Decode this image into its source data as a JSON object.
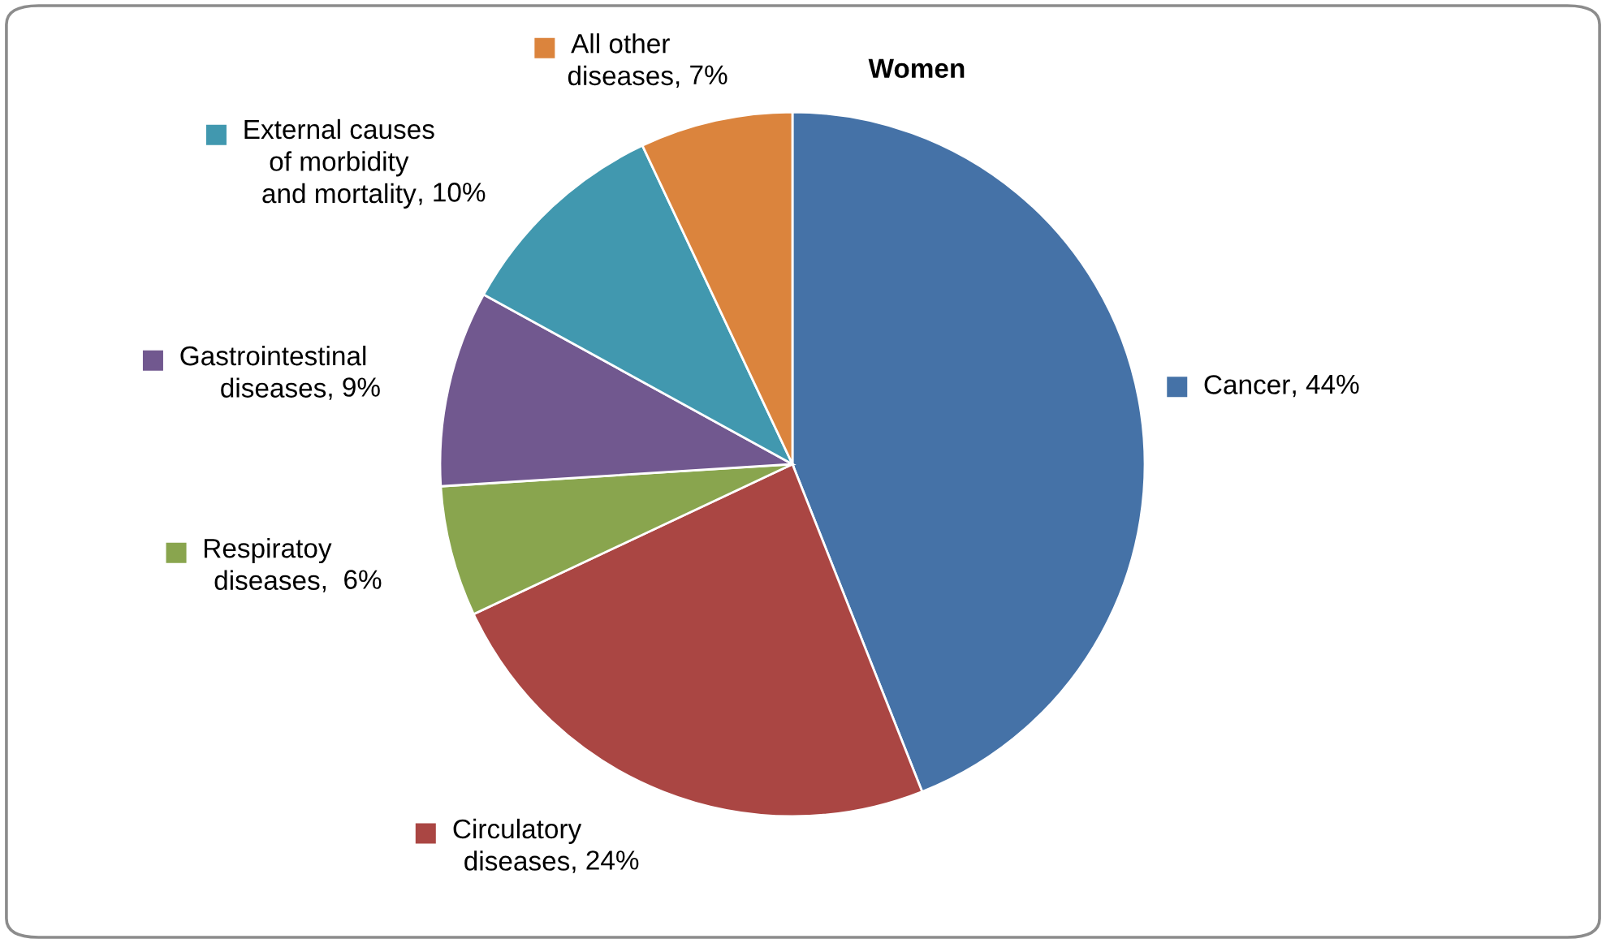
{
  "chart_data": {
    "type": "pie",
    "title": "Women",
    "categories": [
      "Cancer",
      "Circulatory\ndiseases",
      "Respiratoy\ndiseases",
      "Gastrointestinal\ndiseases",
      "External causes\nof morbidity\nand mortality",
      "All other\ndiseases"
    ],
    "values": [
      44,
      24,
      6,
      9,
      10,
      7
    ],
    "colors": [
      "#4572a7",
      "#aa4643",
      "#89a54e",
      "#71588f",
      "#4198af",
      "#db843d"
    ],
    "value_labels": [
      ", 44%",
      ", 24%",
      ",  6%",
      ", 9%",
      ", 10%",
      ", 7%"
    ],
    "legend": true
  }
}
